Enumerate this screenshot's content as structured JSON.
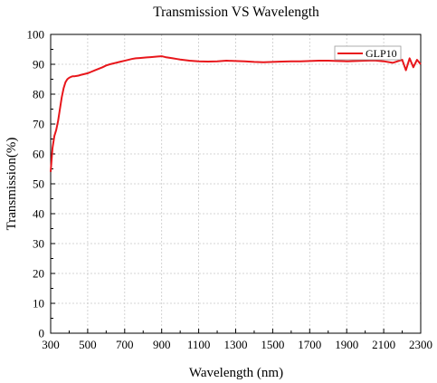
{
  "chart_data": {
    "type": "line",
    "title": "Transmission VS Wavelength",
    "xlabel": "Wavelength (nm)",
    "ylabel": "Transmission(%)",
    "xlim": [
      300,
      2300
    ],
    "ylim": [
      0,
      100
    ],
    "xticks": [
      300,
      500,
      700,
      900,
      1100,
      1300,
      1500,
      1700,
      1900,
      2100,
      2300
    ],
    "yticks": [
      0,
      10,
      20,
      30,
      40,
      50,
      60,
      70,
      80,
      90,
      100
    ],
    "grid": true,
    "legend_position": "top-right",
    "series": [
      {
        "name": "GLP10",
        "color": "#e8161b",
        "x": [
          300,
          305,
          310,
          320,
          330,
          340,
          350,
          360,
          370,
          380,
          390,
          400,
          410,
          420,
          430,
          440,
          450,
          460,
          480,
          500,
          520,
          540,
          560,
          580,
          600,
          620,
          640,
          660,
          680,
          700,
          720,
          740,
          760,
          780,
          800,
          820,
          840,
          860,
          880,
          900,
          920,
          940,
          960,
          980,
          1000,
          1050,
          1100,
          1150,
          1200,
          1250,
          1300,
          1350,
          1400,
          1450,
          1500,
          1550,
          1600,
          1650,
          1700,
          1750,
          1800,
          1850,
          1900,
          1950,
          2000,
          2050,
          2100,
          2150,
          2200,
          2220,
          2240,
          2260,
          2280,
          2300
        ],
        "y": [
          54,
          58,
          62,
          66,
          68,
          71,
          75,
          79,
          82,
          84,
          85,
          85.5,
          85.8,
          86,
          86,
          86.1,
          86.2,
          86.4,
          86.7,
          87,
          87.5,
          88,
          88.5,
          89,
          89.6,
          90,
          90.3,
          90.6,
          90.9,
          91.2,
          91.5,
          91.8,
          92,
          92.1,
          92.2,
          92.3,
          92.4,
          92.5,
          92.6,
          92.7,
          92.4,
          92.2,
          92,
          91.8,
          91.6,
          91.2,
          91,
          90.9,
          91,
          91.2,
          91.1,
          91,
          90.8,
          90.7,
          90.8,
          90.9,
          91,
          91,
          91.1,
          91.2,
          91.2,
          91.1,
          91,
          91.1,
          91.2,
          91.3,
          91,
          90.5,
          91.5,
          88,
          92,
          89,
          91.5,
          90
        ]
      }
    ]
  }
}
